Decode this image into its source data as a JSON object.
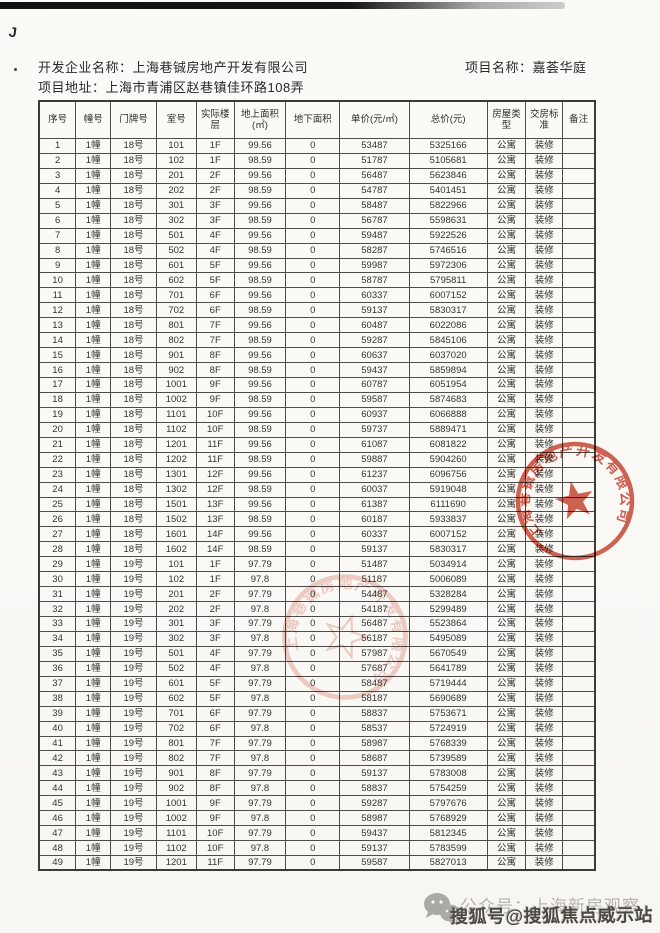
{
  "header": {
    "developer_label": "开发企业名称：",
    "developer_name": "上海巷铖房地产开发有限公司",
    "address_label": "项目地址：",
    "address_value": "上海市青浦区赵巷镇佳环路108弄",
    "project_label": "项目名称：",
    "project_name": "嘉荟华庭"
  },
  "table": {
    "columns": [
      "序号",
      "幢号",
      "门牌号",
      "室号",
      "实际楼层",
      "地上面积(㎡)",
      "地下面积",
      "单价(元/㎡)",
      "总价(元)",
      "房屋类型",
      "交房标准",
      "备注"
    ],
    "rows": [
      [
        "1",
        "1幢",
        "18号",
        "101",
        "1F",
        "99.56",
        "0",
        "53487",
        "5325166",
        "公寓",
        "装修",
        ""
      ],
      [
        "2",
        "1幢",
        "18号",
        "102",
        "1F",
        "98.59",
        "0",
        "51787",
        "5105681",
        "公寓",
        "装修",
        ""
      ],
      [
        "3",
        "1幢",
        "18号",
        "201",
        "2F",
        "99.56",
        "0",
        "56487",
        "5623846",
        "公寓",
        "装修",
        ""
      ],
      [
        "4",
        "1幢",
        "18号",
        "202",
        "2F",
        "98.59",
        "0",
        "54787",
        "5401451",
        "公寓",
        "装修",
        ""
      ],
      [
        "5",
        "1幢",
        "18号",
        "301",
        "3F",
        "99.56",
        "0",
        "58487",
        "5822966",
        "公寓",
        "装修",
        ""
      ],
      [
        "6",
        "1幢",
        "18号",
        "302",
        "3F",
        "98.59",
        "0",
        "56787",
        "5598631",
        "公寓",
        "装修",
        ""
      ],
      [
        "7",
        "1幢",
        "18号",
        "501",
        "4F",
        "99.56",
        "0",
        "59487",
        "5922526",
        "公寓",
        "装修",
        ""
      ],
      [
        "8",
        "1幢",
        "18号",
        "502",
        "4F",
        "98.59",
        "0",
        "58287",
        "5746516",
        "公寓",
        "装修",
        ""
      ],
      [
        "9",
        "1幢",
        "18号",
        "601",
        "5F",
        "99.56",
        "0",
        "59987",
        "5972306",
        "公寓",
        "装修",
        ""
      ],
      [
        "10",
        "1幢",
        "18号",
        "602",
        "5F",
        "98.59",
        "0",
        "58787",
        "5795811",
        "公寓",
        "装修",
        ""
      ],
      [
        "11",
        "1幢",
        "18号",
        "701",
        "6F",
        "99.56",
        "0",
        "60337",
        "6007152",
        "公寓",
        "装修",
        ""
      ],
      [
        "12",
        "1幢",
        "18号",
        "702",
        "6F",
        "98.59",
        "0",
        "59137",
        "5830317",
        "公寓",
        "装修",
        ""
      ],
      [
        "13",
        "1幢",
        "18号",
        "801",
        "7F",
        "99.56",
        "0",
        "60487",
        "6022086",
        "公寓",
        "装修",
        ""
      ],
      [
        "14",
        "1幢",
        "18号",
        "802",
        "7F",
        "98.59",
        "0",
        "59287",
        "5845106",
        "公寓",
        "装修",
        ""
      ],
      [
        "15",
        "1幢",
        "18号",
        "901",
        "8F",
        "99.56",
        "0",
        "60637",
        "6037020",
        "公寓",
        "装修",
        ""
      ],
      [
        "16",
        "1幢",
        "18号",
        "902",
        "8F",
        "98.59",
        "0",
        "59437",
        "5859894",
        "公寓",
        "装修",
        ""
      ],
      [
        "17",
        "1幢",
        "18号",
        "1001",
        "9F",
        "99.56",
        "0",
        "60787",
        "6051954",
        "公寓",
        "装修",
        ""
      ],
      [
        "18",
        "1幢",
        "18号",
        "1002",
        "9F",
        "98.59",
        "0",
        "59587",
        "5874683",
        "公寓",
        "装修",
        ""
      ],
      [
        "19",
        "1幢",
        "18号",
        "1101",
        "10F",
        "99.56",
        "0",
        "60937",
        "6066888",
        "公寓",
        "装修",
        ""
      ],
      [
        "20",
        "1幢",
        "18号",
        "1102",
        "10F",
        "98.59",
        "0",
        "59737",
        "5889471",
        "公寓",
        "装修",
        ""
      ],
      [
        "21",
        "1幢",
        "18号",
        "1201",
        "11F",
        "99.56",
        "0",
        "61087",
        "6081822",
        "公寓",
        "装修",
        ""
      ],
      [
        "22",
        "1幢",
        "18号",
        "1202",
        "11F",
        "98.59",
        "0",
        "59887",
        "5904260",
        "公寓",
        "装修",
        ""
      ],
      [
        "23",
        "1幢",
        "18号",
        "1301",
        "12F",
        "99.56",
        "0",
        "61237",
        "6096756",
        "公寓",
        "装修",
        ""
      ],
      [
        "24",
        "1幢",
        "18号",
        "1302",
        "12F",
        "98.59",
        "0",
        "60037",
        "5919048",
        "公寓",
        "装修",
        ""
      ],
      [
        "25",
        "1幢",
        "18号",
        "1501",
        "13F",
        "99.56",
        "0",
        "61387",
        "6111690",
        "公寓",
        "装修",
        ""
      ],
      [
        "26",
        "1幢",
        "18号",
        "1502",
        "13F",
        "98.59",
        "0",
        "60187",
        "5933837",
        "公寓",
        "装修",
        ""
      ],
      [
        "27",
        "1幢",
        "18号",
        "1601",
        "14F",
        "99.56",
        "0",
        "60337",
        "6007152",
        "公寓",
        "装修",
        ""
      ],
      [
        "28",
        "1幢",
        "18号",
        "1602",
        "14F",
        "98.59",
        "0",
        "59137",
        "5830317",
        "公寓",
        "装修",
        ""
      ],
      [
        "29",
        "1幢",
        "19号",
        "101",
        "1F",
        "97.79",
        "0",
        "51487",
        "5034914",
        "公寓",
        "装修",
        ""
      ],
      [
        "30",
        "1幢",
        "19号",
        "102",
        "1F",
        "97.8",
        "0",
        "51187",
        "5006089",
        "公寓",
        "装修",
        ""
      ],
      [
        "31",
        "1幢",
        "19号",
        "201",
        "2F",
        "97.79",
        "0",
        "54487",
        "5328284",
        "公寓",
        "装修",
        ""
      ],
      [
        "32",
        "1幢",
        "19号",
        "202",
        "2F",
        "97.8",
        "0",
        "54187",
        "5299489",
        "公寓",
        "装修",
        ""
      ],
      [
        "33",
        "1幢",
        "19号",
        "301",
        "3F",
        "97.79",
        "0",
        "56487",
        "5523864",
        "公寓",
        "装修",
        ""
      ],
      [
        "34",
        "1幢",
        "19号",
        "302",
        "3F",
        "97.8",
        "0",
        "56187",
        "5495089",
        "公寓",
        "装修",
        ""
      ],
      [
        "35",
        "1幢",
        "19号",
        "501",
        "4F",
        "97.79",
        "0",
        "57987",
        "5670549",
        "公寓",
        "装修",
        ""
      ],
      [
        "36",
        "1幢",
        "19号",
        "502",
        "4F",
        "97.8",
        "0",
        "57687",
        "5641789",
        "公寓",
        "装修",
        ""
      ],
      [
        "37",
        "1幢",
        "19号",
        "601",
        "5F",
        "97.79",
        "0",
        "58487",
        "5719444",
        "公寓",
        "装修",
        ""
      ],
      [
        "38",
        "1幢",
        "19号",
        "602",
        "5F",
        "97.8",
        "0",
        "58187",
        "5690689",
        "公寓",
        "装修",
        ""
      ],
      [
        "39",
        "1幢",
        "19号",
        "701",
        "6F",
        "97.79",
        "0",
        "58837",
        "5753671",
        "公寓",
        "装修",
        ""
      ],
      [
        "40",
        "1幢",
        "19号",
        "702",
        "6F",
        "97.8",
        "0",
        "58537",
        "5724919",
        "公寓",
        "装修",
        ""
      ],
      [
        "41",
        "1幢",
        "19号",
        "801",
        "7F",
        "97.79",
        "0",
        "58987",
        "5768339",
        "公寓",
        "装修",
        ""
      ],
      [
        "42",
        "1幢",
        "19号",
        "802",
        "7F",
        "97.8",
        "0",
        "58687",
        "5739589",
        "公寓",
        "装修",
        ""
      ],
      [
        "43",
        "1幢",
        "19号",
        "901",
        "8F",
        "97.79",
        "0",
        "59137",
        "5783008",
        "公寓",
        "装修",
        ""
      ],
      [
        "44",
        "1幢",
        "19号",
        "902",
        "8F",
        "97.8",
        "0",
        "58837",
        "5754259",
        "公寓",
        "装修",
        ""
      ],
      [
        "45",
        "1幢",
        "19号",
        "1001",
        "9F",
        "97.79",
        "0",
        "59287",
        "5797676",
        "公寓",
        "装修",
        ""
      ],
      [
        "46",
        "1幢",
        "19号",
        "1002",
        "9F",
        "97.8",
        "0",
        "58987",
        "5768929",
        "公寓",
        "装修",
        ""
      ],
      [
        "47",
        "1幢",
        "19号",
        "1101",
        "10F",
        "97.79",
        "0",
        "59437",
        "5812345",
        "公寓",
        "装修",
        ""
      ],
      [
        "48",
        "1幢",
        "19号",
        "1102",
        "10F",
        "97.8",
        "0",
        "59137",
        "5783599",
        "公寓",
        "装修",
        ""
      ],
      [
        "49",
        "1幢",
        "19号",
        "1201",
        "11F",
        "97.79",
        "0",
        "59587",
        "5827013",
        "公寓",
        "装修",
        ""
      ]
    ]
  },
  "seal": {
    "company": "上海巷铖房地产开发有限公司"
  },
  "watermarks": {
    "wechat_account": "公众号：上海新房观察",
    "sohu_account": "搜狐号@搜狐焦点威示站"
  },
  "colors": {
    "seal_red": "#c8432f",
    "watermark_grey": "#b4b2ae",
    "sohu_text_dark": "#4c4943",
    "paper": "#fbfaf7"
  }
}
